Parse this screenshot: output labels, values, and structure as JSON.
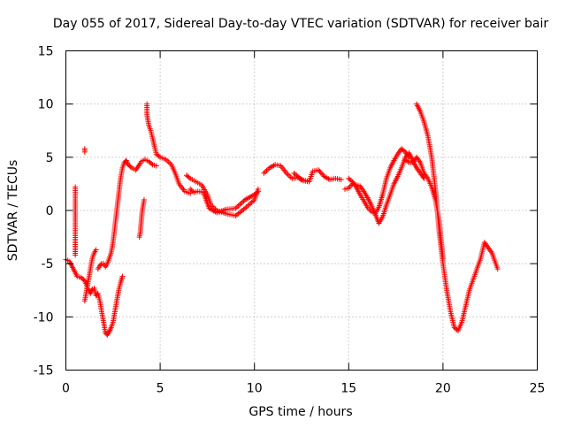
{
  "chart_data": {
    "type": "scatter",
    "title": "Day 055 of 2017, Sidereal Day-to-day VTEC variation (SDTVAR) for receiver bair",
    "xlabel": "GPS time / hours",
    "ylabel": "SDTVAR / TECUs",
    "xlim": [
      0,
      25
    ],
    "ylim": [
      -15,
      15
    ],
    "xticks": [
      "0",
      "5",
      "10",
      "15",
      "20",
      "25"
    ],
    "yticks": [
      "-15",
      "-10",
      "-5",
      "0",
      "5",
      "10",
      "15"
    ],
    "grid": true,
    "marker": "+",
    "series_color": "#ff0000",
    "segments": [
      [
        [
          0.0,
          -4.6
        ],
        [
          0.2,
          -4.8
        ],
        [
          0.4,
          -5.5
        ],
        [
          0.6,
          -6.2
        ],
        [
          0.8,
          -6.3
        ],
        [
          1.0,
          -6.6
        ],
        [
          1.1,
          -7.0
        ],
        [
          1.2,
          -7.5
        ],
        [
          1.3,
          -7.8
        ],
        [
          1.4,
          -7.4
        ],
        [
          1.5,
          -7.3
        ],
        [
          1.6,
          -8.0
        ],
        [
          1.7,
          -7.8
        ],
        [
          1.8,
          -8.5
        ],
        [
          1.9,
          -9.5
        ],
        [
          2.0,
          -10.5
        ],
        [
          2.1,
          -11.5
        ],
        [
          2.2,
          -11.7
        ],
        [
          2.3,
          -11.4
        ],
        [
          2.4,
          -11.0
        ],
        [
          2.5,
          -10.5
        ],
        [
          2.6,
          -9.5
        ],
        [
          2.7,
          -8.5
        ],
        [
          2.8,
          -7.5
        ],
        [
          2.9,
          -6.8
        ],
        [
          3.0,
          -6.2
        ]
      ],
      [
        [
          1.0,
          -8.5
        ],
        [
          1.1,
          -7.5
        ],
        [
          1.2,
          -6.5
        ],
        [
          1.3,
          -5.5
        ],
        [
          1.4,
          -4.5
        ],
        [
          1.5,
          -4.0
        ],
        [
          1.6,
          -3.7
        ]
      ],
      [
        [
          1.7,
          -5.5
        ],
        [
          1.8,
          -5.2
        ],
        [
          1.9,
          -5.0
        ],
        [
          2.0,
          -5.0
        ],
        [
          2.1,
          -5.3
        ],
        [
          2.2,
          -5.0
        ],
        [
          2.3,
          -4.5
        ],
        [
          2.4,
          -4.0
        ],
        [
          2.5,
          -3.0
        ],
        [
          2.6,
          -1.5
        ],
        [
          2.7,
          0.0
        ],
        [
          2.8,
          1.5
        ],
        [
          2.9,
          3.0
        ],
        [
          3.0,
          4.0
        ],
        [
          3.1,
          4.5
        ],
        [
          3.2,
          4.7
        ],
        [
          3.3,
          4.3
        ],
        [
          3.5,
          4.0
        ],
        [
          3.7,
          3.8
        ],
        [
          3.9,
          4.3
        ],
        [
          4.0,
          4.6
        ],
        [
          4.2,
          4.8
        ],
        [
          4.4,
          4.6
        ],
        [
          4.6,
          4.3
        ],
        [
          4.8,
          4.2
        ]
      ],
      [
        [
          3.9,
          -2.5
        ],
        [
          3.95,
          -2.0
        ],
        [
          4.0,
          -1.0
        ],
        [
          4.05,
          0.0
        ],
        [
          4.1,
          0.5
        ],
        [
          4.15,
          1.0
        ]
      ],
      [
        [
          0.5,
          2.2
        ],
        [
          0.5,
          1.0
        ],
        [
          0.5,
          0.0
        ],
        [
          0.5,
          -1.0
        ],
        [
          0.5,
          -2.7
        ],
        [
          0.5,
          -4.2
        ]
      ],
      [
        [
          1.0,
          5.8
        ],
        [
          1.0,
          5.5
        ]
      ],
      [
        [
          4.3,
          10.0
        ],
        [
          4.3,
          9.5
        ],
        [
          4.3,
          9.0
        ],
        [
          4.35,
          8.5
        ],
        [
          4.4,
          8.0
        ],
        [
          4.5,
          7.5
        ],
        [
          4.6,
          6.8
        ],
        [
          4.7,
          6.0
        ],
        [
          4.8,
          5.3
        ],
        [
          5.0,
          5.0
        ],
        [
          5.3,
          4.8
        ],
        [
          5.6,
          4.3
        ],
        [
          5.8,
          3.5
        ],
        [
          6.0,
          2.5
        ],
        [
          6.3,
          1.8
        ],
        [
          6.6,
          1.6
        ]
      ],
      [
        [
          6.4,
          3.3
        ],
        [
          6.6,
          3.0
        ],
        [
          6.8,
          2.8
        ],
        [
          7.0,
          2.6
        ],
        [
          7.2,
          2.4
        ],
        [
          7.5,
          1.5
        ],
        [
          7.7,
          0.5
        ],
        [
          8.0,
          0.0
        ],
        [
          8.5,
          -0.3
        ],
        [
          9.0,
          -0.5
        ],
        [
          9.5,
          0.2
        ],
        [
          10.0,
          1.0
        ],
        [
          10.2,
          2.0
        ]
      ],
      [
        [
          6.6,
          2.0
        ],
        [
          6.8,
          1.7
        ],
        [
          7.0,
          1.8
        ],
        [
          7.3,
          1.7
        ],
        [
          7.6,
          0.2
        ],
        [
          8.0,
          -0.2
        ],
        [
          8.5,
          0.1
        ],
        [
          9.0,
          0.2
        ],
        [
          9.5,
          1.0
        ],
        [
          10.0,
          1.5
        ],
        [
          10.2,
          1.8
        ]
      ],
      [
        [
          10.5,
          3.5
        ],
        [
          10.8,
          4.0
        ],
        [
          11.1,
          4.3
        ],
        [
          11.4,
          4.2
        ],
        [
          11.7,
          3.5
        ],
        [
          12.0,
          3.0
        ],
        [
          12.3,
          3.1
        ],
        [
          12.6,
          2.8
        ],
        [
          12.9,
          2.7
        ]
      ],
      [
        [
          12.1,
          3.5
        ],
        [
          12.3,
          3.2
        ],
        [
          12.5,
          2.9
        ],
        [
          12.7,
          2.8
        ],
        [
          12.9,
          2.7
        ],
        [
          13.1,
          3.7
        ],
        [
          13.4,
          3.8
        ],
        [
          13.7,
          3.2
        ],
        [
          14.0,
          2.9
        ],
        [
          14.3,
          3.0
        ],
        [
          14.6,
          2.9
        ]
      ],
      [
        [
          14.8,
          2.0
        ],
        [
          15.0,
          2.1
        ],
        [
          15.2,
          2.5
        ],
        [
          15.4,
          2.4
        ],
        [
          15.6,
          2.3
        ],
        [
          15.8,
          1.8
        ],
        [
          16.0,
          1.2
        ],
        [
          16.2,
          0.5
        ],
        [
          16.4,
          -0.3
        ],
        [
          16.6,
          -1.2
        ],
        [
          16.8,
          -0.6
        ],
        [
          17.0,
          0.5
        ],
        [
          17.2,
          1.5
        ],
        [
          17.4,
          2.5
        ],
        [
          17.6,
          3.2
        ],
        [
          17.8,
          4.0
        ],
        [
          18.0,
          5.0
        ],
        [
          18.2,
          5.4
        ],
        [
          18.4,
          4.7
        ],
        [
          18.6,
          4.0
        ],
        [
          18.8,
          3.5
        ],
        [
          19.0,
          3.0
        ]
      ],
      [
        [
          15.0,
          3.0
        ],
        [
          15.2,
          2.7
        ],
        [
          15.4,
          2.2
        ],
        [
          15.6,
          1.5
        ],
        [
          15.8,
          0.9
        ],
        [
          16.0,
          0.3
        ],
        [
          16.2,
          -0.1
        ],
        [
          16.4,
          -0.3
        ],
        [
          16.6,
          0.3
        ],
        [
          16.8,
          1.5
        ],
        [
          17.0,
          3.0
        ],
        [
          17.2,
          4.0
        ],
        [
          17.4,
          4.7
        ],
        [
          17.6,
          5.3
        ],
        [
          17.8,
          5.8
        ],
        [
          18.0,
          5.5
        ],
        [
          18.2,
          5.0
        ]
      ],
      [
        [
          18.6,
          10.0
        ],
        [
          18.8,
          9.3
        ],
        [
          19.0,
          8.3
        ],
        [
          19.2,
          7.0
        ],
        [
          19.4,
          5.0
        ],
        [
          19.6,
          2.0
        ],
        [
          19.8,
          -2.0
        ],
        [
          20.0,
          -5.0
        ],
        [
          20.2,
          -7.5
        ],
        [
          20.4,
          -9.5
        ],
        [
          20.6,
          -11.0
        ],
        [
          20.8,
          -11.3
        ],
        [
          21.0,
          -10.5
        ],
        [
          21.2,
          -9.0
        ],
        [
          21.4,
          -7.5
        ],
        [
          21.6,
          -6.5
        ],
        [
          21.8,
          -5.5
        ],
        [
          22.0,
          -4.5
        ],
        [
          22.2,
          -3.0
        ],
        [
          22.4,
          -3.5
        ],
        [
          22.6,
          -4.0
        ],
        [
          22.8,
          -5.0
        ],
        [
          22.9,
          -5.5
        ]
      ],
      [
        [
          18.0,
          4.8
        ],
        [
          18.2,
          4.5
        ],
        [
          18.4,
          4.5
        ],
        [
          18.6,
          5.0
        ],
        [
          18.8,
          4.5
        ],
        [
          19.0,
          3.5
        ],
        [
          19.2,
          3.0
        ],
        [
          19.4,
          2.2
        ],
        [
          19.6,
          1.0
        ],
        [
          19.8,
          -1.0
        ],
        [
          20.0,
          -4.5
        ]
      ]
    ]
  }
}
